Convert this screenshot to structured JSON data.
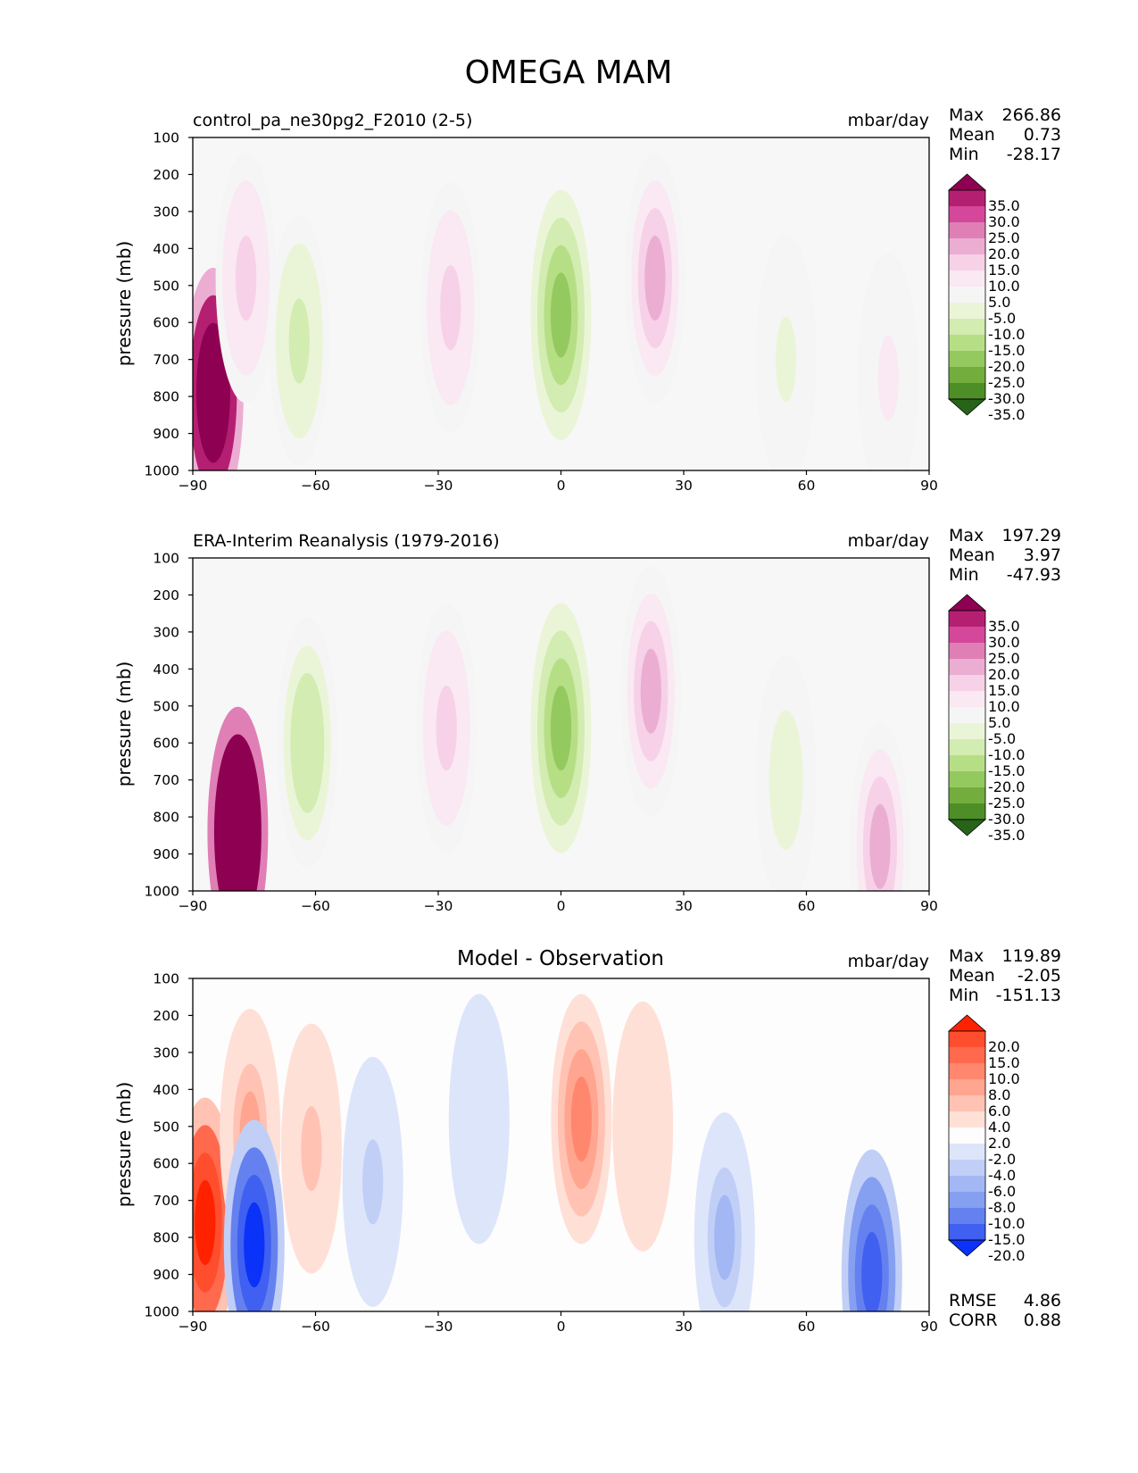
{
  "figure_title": "OMEGA MAM",
  "chart_data": [
    {
      "type": "heatmap",
      "title": "control_pa_ne30pg2_F2010 (2-5)",
      "units": "mbar/day",
      "xlabel": "",
      "ylabel": "pressure (mb)",
      "xlim": [
        -90,
        90
      ],
      "ylim": [
        1000,
        100
      ],
      "xticks": [
        "−90",
        "−60",
        "−30",
        "0",
        "30",
        "60",
        "90"
      ],
      "yticks": [
        "100",
        "200",
        "300",
        "400",
        "500",
        "600",
        "700",
        "800",
        "900",
        "1000"
      ],
      "stats": {
        "max_label": "Max",
        "max": "266.86",
        "mean_label": "Mean",
        "mean": "0.73",
        "min_label": "Min",
        "min": "-28.17"
      },
      "colorbar": {
        "ticks": [
          "35.0",
          "30.0",
          "25.0",
          "20.0",
          "15.0",
          "10.0",
          "5.0",
          "-5.0",
          "-10.0",
          "-15.0",
          "-20.0",
          "-25.0",
          "-30.0",
          "-35.0"
        ],
        "colors": [
          "#8e0152",
          "#b51f72",
          "#d4479a",
          "#e07fb5",
          "#ecadd3",
          "#f6d1e7",
          "#fae8f2",
          "#f5f5f5",
          "#eaf5d8",
          "#d3ecb1",
          "#b6df85",
          "#94c95f",
          "#72ad3e",
          "#4d8f26",
          "#276419"
        ]
      },
      "features": [
        {
          "lat": -85,
          "p": 790,
          "value": 60
        },
        {
          "lat": -77,
          "p": 480,
          "value": 12
        },
        {
          "lat": -64,
          "p": 650,
          "value": -12
        },
        {
          "lat": -27,
          "p": 560,
          "value": 10
        },
        {
          "lat": 0,
          "p": 580,
          "value": -22
        },
        {
          "lat": 23,
          "p": 480,
          "value": 17
        },
        {
          "lat": 55,
          "p": 700,
          "value": -6
        },
        {
          "lat": 80,
          "p": 750,
          "value": 6
        }
      ]
    },
    {
      "type": "heatmap",
      "title": "ERA-Interim Reanalysis (1979-2016)",
      "units": "mbar/day",
      "xlabel": "",
      "ylabel": "pressure (mb)",
      "xlim": [
        -90,
        90
      ],
      "ylim": [
        1000,
        100
      ],
      "xticks": [
        "−90",
        "−60",
        "−30",
        "0",
        "30",
        "60",
        "90"
      ],
      "yticks": [
        "100",
        "200",
        "300",
        "400",
        "500",
        "600",
        "700",
        "800",
        "900",
        "1000"
      ],
      "stats": {
        "max_label": "Max",
        "max": "197.29",
        "mean_label": "Mean",
        "mean": "3.97",
        "min_label": "Min",
        "min": "-47.93"
      },
      "colorbar": {
        "ticks": [
          "35.0",
          "30.0",
          "25.0",
          "20.0",
          "15.0",
          "10.0",
          "5.0",
          "-5.0",
          "-10.0",
          "-15.0",
          "-20.0",
          "-25.0",
          "-30.0",
          "-35.0"
        ],
        "colors": [
          "#8e0152",
          "#b51f72",
          "#d4479a",
          "#e07fb5",
          "#ecadd3",
          "#f6d1e7",
          "#fae8f2",
          "#f5f5f5",
          "#eaf5d8",
          "#d3ecb1",
          "#b6df85",
          "#94c95f",
          "#72ad3e",
          "#4d8f26",
          "#276419"
        ]
      },
      "features": [
        {
          "lat": -79,
          "p": 840,
          "value": 80
        },
        {
          "lat": -62,
          "p": 600,
          "value": -14
        },
        {
          "lat": -28,
          "p": 560,
          "value": 10
        },
        {
          "lat": 0,
          "p": 560,
          "value": -24
        },
        {
          "lat": 22,
          "p": 460,
          "value": 16
        },
        {
          "lat": 55,
          "p": 700,
          "value": -7
        },
        {
          "lat": 78,
          "p": 880,
          "value": 18
        }
      ]
    },
    {
      "type": "heatmap",
      "title": "Model - Observation",
      "units": "mbar/day",
      "xlabel": "",
      "ylabel": "pressure (mb)",
      "xlim": [
        -90,
        90
      ],
      "ylim": [
        1000,
        100
      ],
      "xticks": [
        "−90",
        "−60",
        "−30",
        "0",
        "30",
        "60",
        "90"
      ],
      "yticks": [
        "100",
        "200",
        "300",
        "400",
        "500",
        "600",
        "700",
        "800",
        "900",
        "1000"
      ],
      "stats": {
        "max_label": "Max",
        "max": "119.89",
        "mean_label": "Mean",
        "mean": "-2.05",
        "min_label": "Min",
        "min": "-151.13"
      },
      "extra_stats": {
        "rmse_label": "RMSE",
        "rmse": "4.86",
        "corr_label": "CORR",
        "corr": "0.88"
      },
      "colorbar": {
        "ticks": [
          "20.0",
          "15.0",
          "10.0",
          "8.0",
          "6.0",
          "4.0",
          "2.0",
          "-2.0",
          "-4.0",
          "-6.0",
          "-8.0",
          "-10.0",
          "-15.0",
          "-20.0"
        ],
        "colors": [
          "#ff2200",
          "#ff4e2e",
          "#ff6a4e",
          "#ff876e",
          "#ffa590",
          "#ffc2b3",
          "#ffe0d7",
          "#fdfdfd",
          "#dde5fb",
          "#c1cff7",
          "#a3b7f4",
          "#859ff1",
          "#6581ef",
          "#3f60f0",
          "#0a32f8"
        ]
      },
      "features": [
        {
          "lat": -87,
          "p": 760,
          "value": 22
        },
        {
          "lat": -76,
          "p": 520,
          "value": 7
        },
        {
          "lat": -75,
          "p": 820,
          "value": -22
        },
        {
          "lat": -61,
          "p": 560,
          "value": 4
        },
        {
          "lat": -46,
          "p": 650,
          "value": -5
        },
        {
          "lat": -20,
          "p": 480,
          "value": -2.5
        },
        {
          "lat": 5,
          "p": 480,
          "value": 9
        },
        {
          "lat": 20,
          "p": 500,
          "value": 3
        },
        {
          "lat": 40,
          "p": 800,
          "value": -7
        },
        {
          "lat": 76,
          "p": 900,
          "value": -20
        }
      ]
    }
  ]
}
